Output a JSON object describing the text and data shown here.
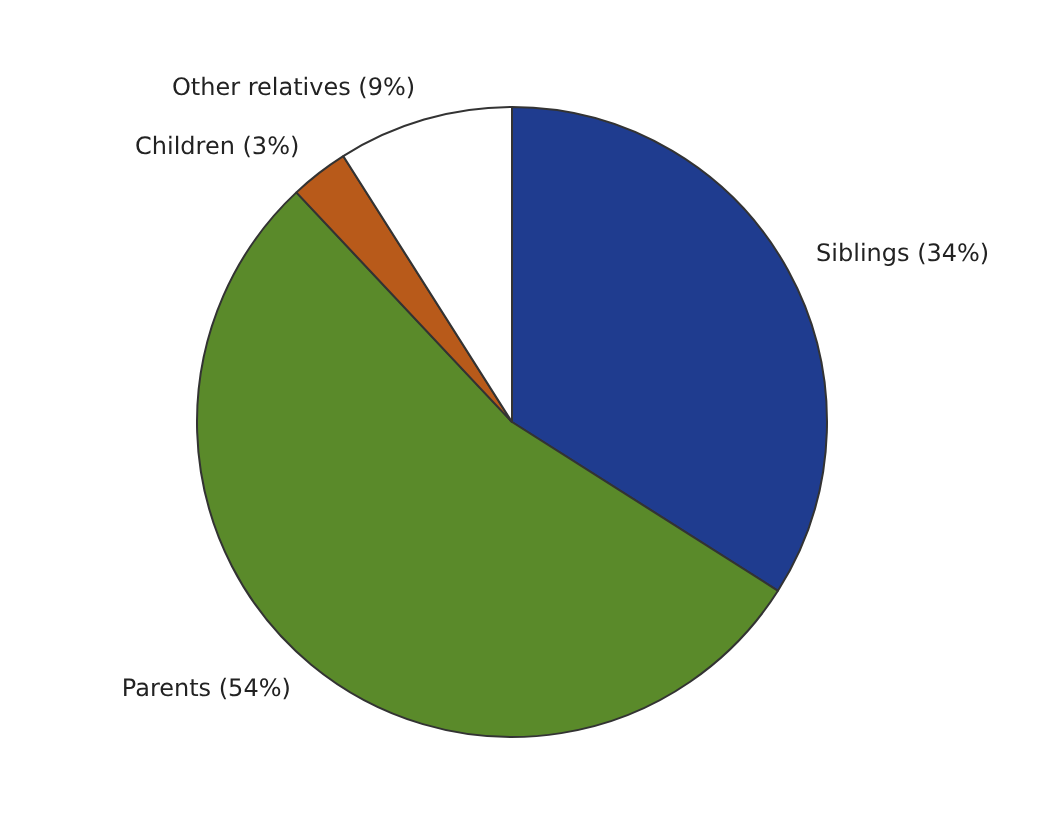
{
  "chart_data": {
    "type": "pie",
    "categories": [
      "Siblings (34%)",
      "Parents (54%)",
      "Children (3%)",
      "Other relatives (9%)"
    ],
    "values": [
      34,
      54,
      3,
      9
    ],
    "colors": [
      "#1f3c8f",
      "#5a8a2a",
      "#b85a1a",
      "#ffffff"
    ],
    "legend": false
  }
}
